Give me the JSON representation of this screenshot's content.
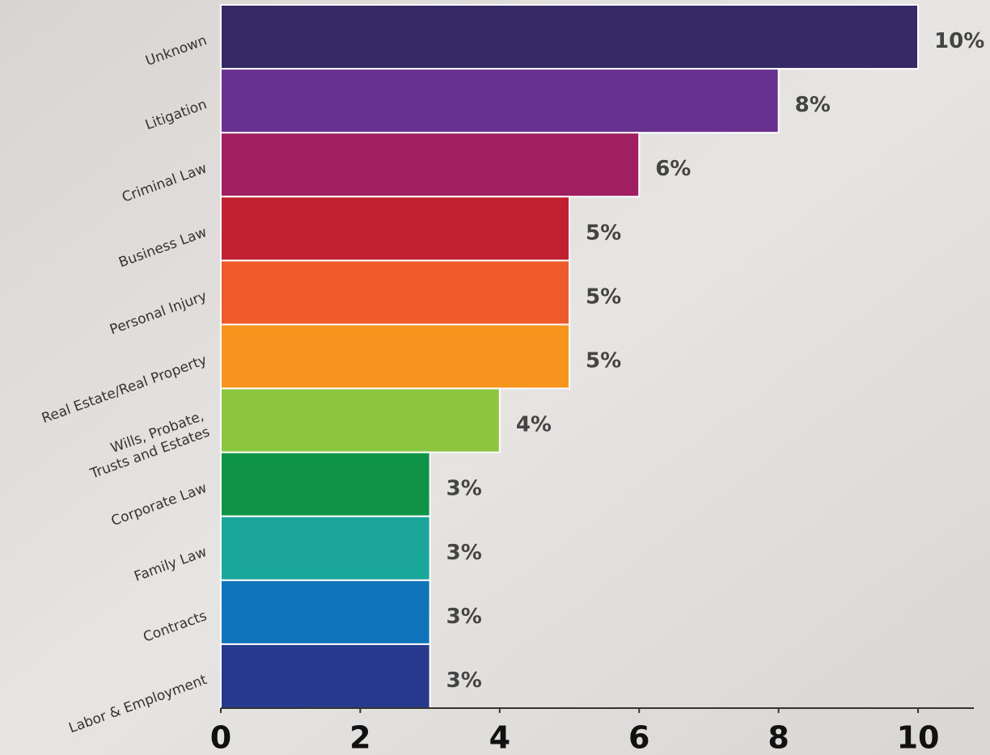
{
  "chart_data": {
    "type": "hbar",
    "categories": [
      "Unknown",
      "Litigation",
      "Criminal Law",
      "Business Law",
      "Personal Injury",
      "Real Estate/Real Property",
      "Wills, Probate,\nTrusts and Estates",
      "Corporate Law",
      "Family Law",
      "Contracts",
      "Labor & Employment"
    ],
    "values": [
      10,
      8,
      6,
      5,
      5,
      5,
      4,
      3,
      3,
      3,
      3
    ],
    "value_labels": [
      "10%",
      "8%",
      "6%",
      "5%",
      "5%",
      "5%",
      "4%",
      "3%",
      "3%",
      "3%",
      "3%"
    ],
    "colors": [
      "#352a65",
      "#69318f",
      "#a01f60",
      "#c0202f",
      "#ef5a2a",
      "#f7941e",
      "#8cc63f",
      "#0f9447",
      "#1aa69b",
      "#1074bb",
      "#283a8e"
    ],
    "xlim": [
      0,
      10.8
    ],
    "xticks": [
      0,
      2,
      4,
      6,
      8,
      10
    ]
  }
}
